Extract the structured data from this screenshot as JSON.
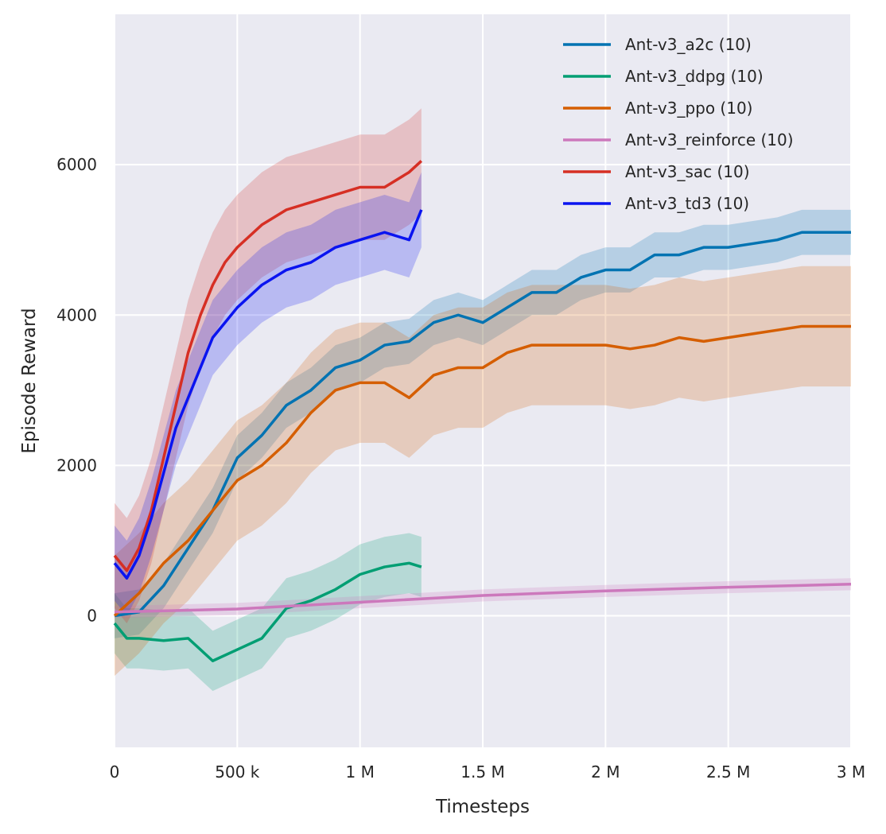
{
  "chart_data": {
    "type": "line",
    "title": "",
    "xlabel": "Timesteps",
    "ylabel": "Episode Reward",
    "xlim": [
      0,
      3000000
    ],
    "ylim": [
      -1750,
      8000
    ],
    "grid": true,
    "legend_position": "top-right",
    "xticks": [
      0,
      500000,
      1000000,
      1500000,
      2000000,
      2500000,
      3000000
    ],
    "xtick_labels": [
      "0",
      "500 k",
      "1 M",
      "1.5 M",
      "2 M",
      "2.5 M",
      "3 M"
    ],
    "yticks": [
      0,
      2000,
      4000,
      6000
    ],
    "ytick_labels": [
      "0",
      "2000",
      "4000",
      "6000"
    ],
    "series": [
      {
        "name": "Ant-v3_a2c (10)",
        "color": "#0173b2",
        "band": 300,
        "x": [
          0,
          100000,
          200000,
          300000,
          400000,
          500000,
          600000,
          700000,
          800000,
          900000,
          1000000,
          1100000,
          1200000,
          1300000,
          1400000,
          1500000,
          1600000,
          1700000,
          1800000,
          1900000,
          2000000,
          2100000,
          2200000,
          2300000,
          2400000,
          2500000,
          2600000,
          2700000,
          2800000,
          2900000,
          3000000
        ],
        "y": [
          0,
          50,
          400,
          900,
          1400,
          2100,
          2400,
          2800,
          3000,
          3300,
          3400,
          3600,
          3650,
          3900,
          4000,
          3900,
          4100,
          4300,
          4300,
          4500,
          4600,
          4600,
          4800,
          4800,
          4900,
          4900,
          4950,
          5000,
          5100,
          5100,
          5100
        ]
      },
      {
        "name": "Ant-v3_ddpg (10)",
        "color": "#029e73",
        "band": 400,
        "x": [
          0,
          50000,
          100000,
          200000,
          300000,
          400000,
          500000,
          600000,
          700000,
          800000,
          900000,
          1000000,
          1100000,
          1200000,
          1250000
        ],
        "y": [
          -100,
          -300,
          -300,
          -330,
          -300,
          -600,
          -450,
          -300,
          100,
          200,
          350,
          550,
          650,
          700,
          650
        ]
      },
      {
        "name": "Ant-v3_ppo (10)",
        "color": "#d55e00",
        "band": 800,
        "x": [
          0,
          100000,
          200000,
          300000,
          400000,
          500000,
          600000,
          700000,
          800000,
          900000,
          1000000,
          1100000,
          1200000,
          1300000,
          1400000,
          1500000,
          1600000,
          1700000,
          1800000,
          1900000,
          2000000,
          2100000,
          2200000,
          2300000,
          2400000,
          2500000,
          2600000,
          2700000,
          2800000,
          2900000,
          3000000
        ],
        "y": [
          0,
          300,
          700,
          1000,
          1400,
          1800,
          2000,
          2300,
          2700,
          3000,
          3100,
          3100,
          2900,
          3200,
          3300,
          3300,
          3500,
          3600,
          3600,
          3600,
          3600,
          3550,
          3600,
          3700,
          3650,
          3700,
          3750,
          3800,
          3850,
          3850,
          3850
        ]
      },
      {
        "name": "Ant-v3_reinforce (10)",
        "color": "#cc78bc",
        "band": 80,
        "x": [
          0,
          500000,
          1000000,
          1500000,
          2000000,
          2500000,
          3000000
        ],
        "y": [
          50,
          90,
          180,
          270,
          330,
          380,
          420
        ]
      },
      {
        "name": "Ant-v3_sac (10)",
        "color": "#d62f24",
        "band": 700,
        "x": [
          0,
          50000,
          100000,
          150000,
          200000,
          250000,
          300000,
          350000,
          400000,
          450000,
          500000,
          600000,
          700000,
          800000,
          900000,
          1000000,
          1100000,
          1200000,
          1250000
        ],
        "y": [
          800,
          600,
          900,
          1400,
          2100,
          2800,
          3500,
          4000,
          4400,
          4700,
          4900,
          5200,
          5400,
          5500,
          5600,
          5700,
          5700,
          5900,
          6050
        ]
      },
      {
        "name": "Ant-v3_td3 (10)",
        "color": "#0a14f0",
        "band": 500,
        "x": [
          0,
          50000,
          100000,
          150000,
          200000,
          250000,
          300000,
          350000,
          400000,
          450000,
          500000,
          600000,
          700000,
          800000,
          900000,
          1000000,
          1100000,
          1200000,
          1250000
        ],
        "y": [
          700,
          500,
          800,
          1300,
          1900,
          2500,
          2900,
          3300,
          3700,
          3900,
          4100,
          4400,
          4600,
          4700,
          4900,
          5000,
          5100,
          5000,
          5400
        ]
      }
    ]
  }
}
